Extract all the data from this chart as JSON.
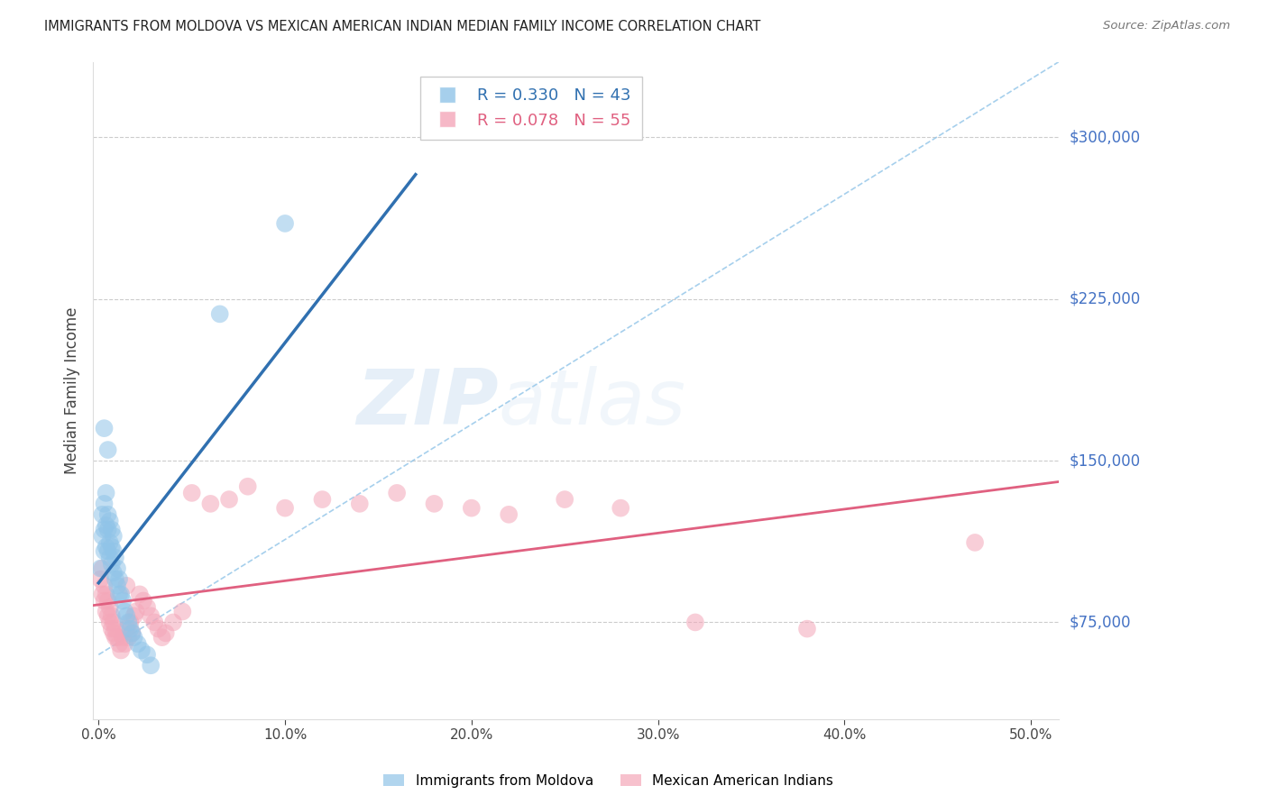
{
  "title": "IMMIGRANTS FROM MOLDOVA VS MEXICAN AMERICAN INDIAN MEDIAN FAMILY INCOME CORRELATION CHART",
  "source": "Source: ZipAtlas.com",
  "ylabel": "Median Family Income",
  "xlabel_ticks": [
    "0.0%",
    "10.0%",
    "20.0%",
    "30.0%",
    "40.0%",
    "50.0%"
  ],
  "xlabel_vals": [
    0.0,
    0.1,
    0.2,
    0.3,
    0.4,
    0.5
  ],
  "ytick_labels": [
    "$75,000",
    "$150,000",
    "$225,000",
    "$300,000"
  ],
  "ytick_vals": [
    75000,
    150000,
    225000,
    300000
  ],
  "ymin": 30000,
  "ymax": 335000,
  "xmin": -0.003,
  "xmax": 0.515,
  "blue_R": 0.33,
  "blue_N": 43,
  "pink_R": 0.078,
  "pink_N": 55,
  "blue_label": "Immigrants from Moldova",
  "pink_label": "Mexican American Indians",
  "blue_color": "#90c4e8",
  "pink_color": "#f4a7b9",
  "blue_line_color": "#3070b0",
  "pink_line_color": "#e06080",
  "watermark_zip": "ZIP",
  "watermark_atlas": "atlas",
  "blue_scatter_x": [
    0.001,
    0.002,
    0.002,
    0.003,
    0.003,
    0.003,
    0.004,
    0.004,
    0.004,
    0.005,
    0.005,
    0.005,
    0.006,
    0.006,
    0.006,
    0.007,
    0.007,
    0.007,
    0.008,
    0.008,
    0.008,
    0.009,
    0.009,
    0.01,
    0.01,
    0.011,
    0.011,
    0.012,
    0.013,
    0.014,
    0.015,
    0.016,
    0.017,
    0.018,
    0.019,
    0.021,
    0.023,
    0.026,
    0.028,
    0.003,
    0.005,
    0.1,
    0.065
  ],
  "blue_scatter_y": [
    100000,
    115000,
    125000,
    108000,
    118000,
    130000,
    110000,
    120000,
    135000,
    108000,
    118000,
    125000,
    105000,
    112000,
    122000,
    102000,
    110000,
    118000,
    98000,
    108000,
    115000,
    95000,
    105000,
    92000,
    100000,
    88000,
    95000,
    88000,
    85000,
    80000,
    78000,
    75000,
    72000,
    70000,
    68000,
    65000,
    62000,
    60000,
    55000,
    165000,
    155000,
    260000,
    218000
  ],
  "pink_scatter_x": [
    0.001,
    0.002,
    0.002,
    0.003,
    0.003,
    0.004,
    0.004,
    0.005,
    0.005,
    0.006,
    0.006,
    0.007,
    0.007,
    0.008,
    0.008,
    0.009,
    0.009,
    0.01,
    0.011,
    0.012,
    0.013,
    0.014,
    0.015,
    0.016,
    0.017,
    0.018,
    0.019,
    0.02,
    0.022,
    0.024,
    0.026,
    0.028,
    0.03,
    0.032,
    0.034,
    0.036,
    0.04,
    0.045,
    0.05,
    0.06,
    0.07,
    0.08,
    0.1,
    0.12,
    0.14,
    0.16,
    0.18,
    0.2,
    0.22,
    0.25,
    0.28,
    0.32,
    0.38,
    0.47,
    0.015
  ],
  "pink_scatter_y": [
    95000,
    88000,
    100000,
    85000,
    92000,
    80000,
    88000,
    78000,
    85000,
    75000,
    82000,
    72000,
    78000,
    70000,
    75000,
    68000,
    72000,
    68000,
    65000,
    62000,
    68000,
    65000,
    72000,
    68000,
    75000,
    70000,
    78000,
    80000,
    88000,
    85000,
    82000,
    78000,
    75000,
    72000,
    68000,
    70000,
    75000,
    80000,
    135000,
    130000,
    132000,
    138000,
    128000,
    132000,
    130000,
    135000,
    130000,
    128000,
    125000,
    132000,
    128000,
    75000,
    72000,
    112000,
    92000
  ]
}
